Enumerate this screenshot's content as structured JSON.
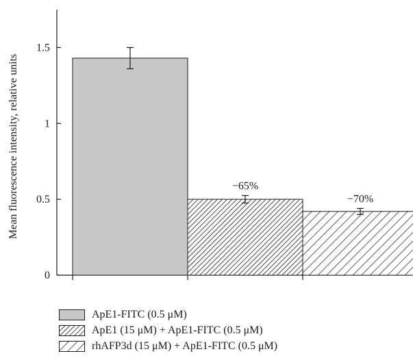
{
  "chart_data": {
    "type": "bar",
    "categories": [
      "ApE1-FITC (0.5 μM)",
      "ApE1 (15 μM) + ApE1-FITC (0.5 μM)",
      "rhAFP3d (15 μM) + ApE1-FITC (0.5 μM)"
    ],
    "values": [
      1.43,
      0.5,
      0.42
    ],
    "errors": [
      0.07,
      0.025,
      0.02
    ],
    "annotations": [
      "",
      "−65%",
      "−70%"
    ],
    "ylabel": "Mean fluorescence intensity, relative units",
    "xlabel": "",
    "ylim": [
      0,
      1.75
    ],
    "yticks": [
      0,
      0.5,
      1,
      1.5
    ],
    "ytick_labels": [
      "0",
      "0.5",
      "1",
      "1.5"
    ],
    "fills": [
      "solid",
      "dense-hatch",
      "sparse-hatch"
    ],
    "colors": {
      "solid": "#c8c8c8",
      "hatch": "#1a1a1a",
      "background": "#ffffff"
    },
    "legend_position": "bottom"
  },
  "legend": {
    "items": [
      {
        "label": "ApE1-FITC (0.5 μM)",
        "fill": "solid"
      },
      {
        "label": "ApE1 (15 μM) + ApE1-FITC (0.5 μM)",
        "fill": "dense-hatch"
      },
      {
        "label": "rhAFP3d (15 μM) + ApE1-FITC (0.5 μM)",
        "fill": "sparse-hatch"
      }
    ]
  }
}
